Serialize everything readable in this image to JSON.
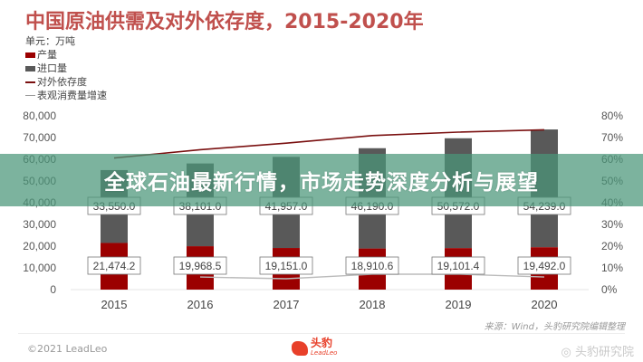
{
  "title": "中国原油供需及对外依存度，2015-2020年",
  "unit_label": "单元：万吨",
  "legend": [
    {
      "label": "产量",
      "type": "bar",
      "color": "#9b0000"
    },
    {
      "label": "进口量",
      "type": "bar",
      "color": "#595959"
    },
    {
      "label": "对外依存度",
      "type": "line",
      "color": "#7a1010"
    },
    {
      "label": "表观消费量增速",
      "type": "line",
      "color": "#bbbbbb"
    }
  ],
  "banner_text": "全球石油最新行情，市场走势深度分析与展望",
  "source": "来源：Wind，头豹研究院编辑整理",
  "copyright": "©2021 LeadLeo",
  "logo": {
    "cn": "头豹",
    "en": "LeadLeo"
  },
  "watermark": "头豹研究院",
  "chart_data": {
    "type": "bar",
    "stacked": true,
    "title": "中国原油供需及对外依存度，2015-2020年",
    "categories": [
      "2015",
      "2016",
      "2017",
      "2018",
      "2019",
      "2020"
    ],
    "series": [
      {
        "name": "产量",
        "axis": "left",
        "values": [
          21474.2,
          19968.5,
          19151.0,
          18910.6,
          19101.4,
          19492.0
        ],
        "labels": [
          "21,474.2",
          "19,968.5",
          "19,151.0",
          "18,910.6",
          "19,101.4",
          "19,492.0"
        ]
      },
      {
        "name": "进口量",
        "axis": "left",
        "values": [
          33550.0,
          38101.0,
          41957.0,
          46190.0,
          50572.0,
          54239.0
        ],
        "labels": [
          "33,550.0",
          "38,101.0",
          "41,957.0",
          "46,190.0",
          "50,572.0",
          "54,239.0"
        ]
      },
      {
        "name": "对外依存度",
        "axis": "right",
        "type": "line",
        "values": [
          60.6,
          64.4,
          67.4,
          70.9,
          72.5,
          73.6
        ]
      },
      {
        "name": "表观消费量增速",
        "axis": "right",
        "type": "line",
        "categories": [
          "2016",
          "2017",
          "2018",
          "2019",
          "2020"
        ],
        "values": [
          5.8,
          5.0,
          7.1,
          7.1,
          5.8
        ]
      }
    ],
    "xlabel": "",
    "ylabel": "万吨",
    "ylim": [
      0,
      80000
    ],
    "yticks": [
      "0",
      "10,000",
      "20,000",
      "30,000",
      "40,000",
      "50,000",
      "60,000",
      "70,000",
      "80,000"
    ],
    "y2lim": [
      0,
      80
    ],
    "y2ticks": [
      "0%",
      "10%",
      "20%",
      "30%",
      "40%",
      "50%",
      "60%",
      "70%",
      "80%"
    ],
    "grid": false,
    "legend_position": "top-left"
  }
}
